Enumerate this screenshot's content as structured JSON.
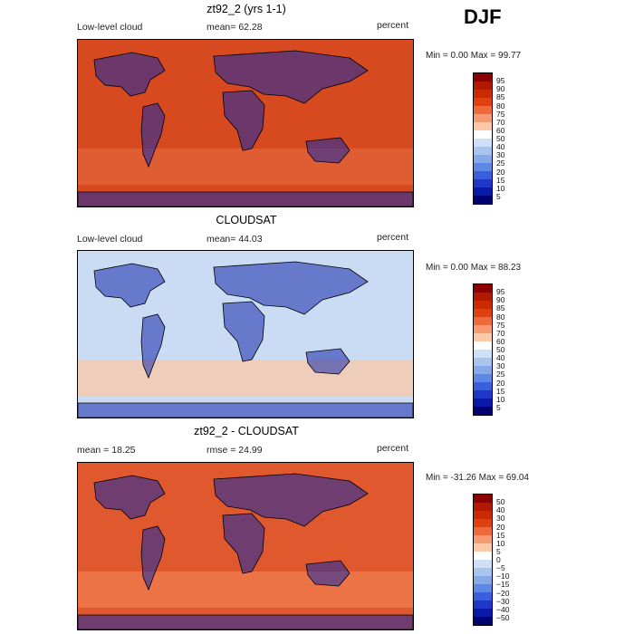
{
  "season": "DJF",
  "panels": [
    {
      "title": "zt92_2 (yrs 1-1)",
      "left_label": "Low-level cloud",
      "mid_label": "mean=  62.28",
      "units": "percent",
      "minmax": "Min =    0.00 Max =  99.77",
      "colorbar": {
        "ticks": [
          "95",
          "90",
          "85",
          "80",
          "75",
          "70",
          "60",
          "50",
          "40",
          "30",
          "25",
          "20",
          "15",
          "10",
          "5"
        ],
        "colors": [
          "#8b0000",
          "#b01a00",
          "#cc2a00",
          "#de4010",
          "#ee6a3a",
          "#f59a72",
          "#fbc8a8",
          "#ffffff",
          "#cfe0f6",
          "#a9c5ee",
          "#86a9ea",
          "#5f88e4",
          "#3a5fdd",
          "#1f38c8",
          "#0a1aa8",
          "#000070"
        ]
      },
      "field": {
        "base": "#d74a1f",
        "ocean_tint": "#e2613a"
      }
    },
    {
      "title": "CLOUDSAT",
      "left_label": "Low-level cloud",
      "mid_label": "mean=  44.03",
      "units": "percent",
      "minmax": "Min =    0.00 Max =  88.23",
      "colorbar": {
        "ticks": [
          "95",
          "90",
          "85",
          "80",
          "75",
          "70",
          "60",
          "50",
          "40",
          "30",
          "25",
          "20",
          "15",
          "10",
          "5"
        ],
        "colors": [
          "#8b0000",
          "#b01a00",
          "#cc2a00",
          "#de4010",
          "#ee6a3a",
          "#f59a72",
          "#fbc8a8",
          "#ffffff",
          "#cfe0f6",
          "#a9c5ee",
          "#86a9ea",
          "#5f88e4",
          "#3a5fdd",
          "#1f38c8",
          "#0a1aa8",
          "#000070"
        ]
      },
      "field": {
        "base": "#c9dcf3",
        "ocean_tint": "#f7c9ad"
      }
    },
    {
      "title": "zt92_2 - CLOUDSAT",
      "left_label": "mean =  18.25",
      "mid_label": "rmse =  24.99",
      "units": "percent",
      "minmax": "Min = -31.26 Max =  69.04",
      "colorbar": {
        "ticks": [
          "50",
          "40",
          "30",
          "20",
          "15",
          "10",
          "5",
          "0",
          "−5",
          "−10",
          "−15",
          "−20",
          "−30",
          "−40",
          "−50"
        ],
        "colors": [
          "#8b0000",
          "#b01a00",
          "#cc2a00",
          "#de4010",
          "#ee6a3a",
          "#f59a72",
          "#fbc8a8",
          "#ffffff",
          "#cfe0f6",
          "#a9c5ee",
          "#86a9ea",
          "#5f88e4",
          "#3a5fdd",
          "#1f38c8",
          "#0a1aa8",
          "#000070"
        ]
      },
      "field": {
        "base": "#e0582d",
        "ocean_tint": "#ee7a4c"
      }
    }
  ]
}
